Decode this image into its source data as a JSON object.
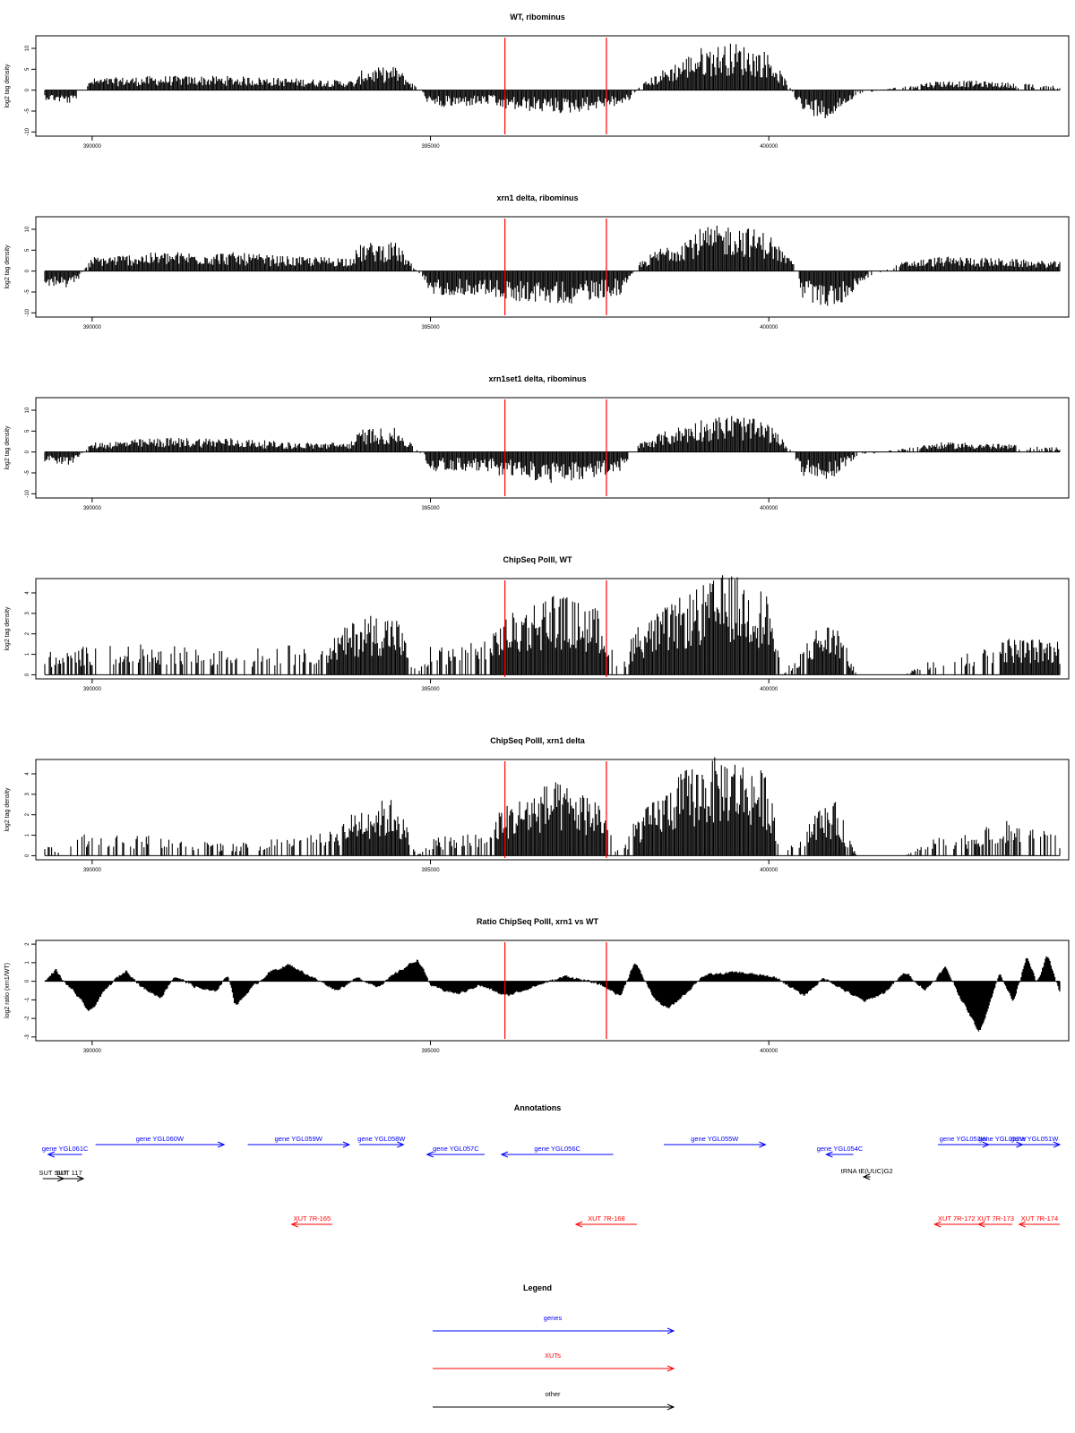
{
  "figure": {
    "colors": {
      "gene": "#0000ff",
      "xut": "#ff0000",
      "other": "#000000",
      "marker": "#ff0000",
      "data": "#000000"
    }
  },
  "chart_data": [
    {
      "type": "bar",
      "title": "WT, ribominus",
      "ylabel": "log2 tag density",
      "xlim": [
        389300,
        404300
      ],
      "ylim": [
        -11,
        13
      ],
      "yticks": [
        -10,
        -5,
        0,
        5,
        10
      ],
      "xticks": [
        "390000",
        "395000",
        "400000"
      ],
      "vlines": [
        396100,
        397600
      ],
      "grid": false,
      "profile": [
        [
          389300,
          -2
        ],
        [
          389700,
          -3
        ],
        [
          390000,
          2.5
        ],
        [
          391000,
          3
        ],
        [
          392000,
          3
        ],
        [
          393000,
          2.5
        ],
        [
          393900,
          2
        ],
        [
          394000,
          4.5
        ],
        [
          394500,
          5
        ],
        [
          394900,
          -1
        ],
        [
          395000,
          -4
        ],
        [
          395900,
          -3
        ],
        [
          396000,
          -4
        ],
        [
          397000,
          -5
        ],
        [
          397900,
          -3
        ],
        [
          398100,
          1
        ],
        [
          398400,
          4
        ],
        [
          399000,
          9
        ],
        [
          399500,
          10
        ],
        [
          400000,
          8
        ],
        [
          400300,
          1
        ],
        [
          400500,
          -5
        ],
        [
          400900,
          -6
        ],
        [
          401300,
          -1
        ],
        [
          402000,
          1
        ],
        [
          402500,
          2
        ],
        [
          403000,
          2
        ],
        [
          404300,
          1
        ]
      ]
    },
    {
      "type": "bar",
      "title": "xrn1 delta, ribominus",
      "ylabel": "log2 tag density",
      "xlim": [
        389300,
        404300
      ],
      "ylim": [
        -11,
        13
      ],
      "yticks": [
        -10,
        -5,
        0,
        5,
        10
      ],
      "xticks": [
        "390000",
        "395000",
        "400000"
      ],
      "vlines": [
        396100,
        397600
      ],
      "grid": false,
      "profile": [
        [
          389300,
          -3
        ],
        [
          389700,
          -4
        ],
        [
          390000,
          3
        ],
        [
          391000,
          4
        ],
        [
          392000,
          4
        ],
        [
          393000,
          3
        ],
        [
          393800,
          3
        ],
        [
          394000,
          6
        ],
        [
          394500,
          6
        ],
        [
          394900,
          -2
        ],
        [
          395000,
          -5
        ],
        [
          395900,
          -5
        ],
        [
          396000,
          -6
        ],
        [
          397000,
          -7
        ],
        [
          397800,
          -5
        ],
        [
          398100,
          2
        ],
        [
          398400,
          5
        ],
        [
          399000,
          9
        ],
        [
          399500,
          10
        ],
        [
          400000,
          8
        ],
        [
          400400,
          1
        ],
        [
          400500,
          -6
        ],
        [
          401000,
          -8
        ],
        [
          401400,
          -2
        ],
        [
          402000,
          2
        ],
        [
          402500,
          3
        ],
        [
          403000,
          3
        ],
        [
          404300,
          2
        ]
      ]
    },
    {
      "type": "bar",
      "title": "xrn1set1 delta, ribominus",
      "ylabel": "log2 tag density",
      "xlim": [
        389300,
        404300
      ],
      "ylim": [
        -11,
        13
      ],
      "yticks": [
        -10,
        -5,
        0,
        5,
        10
      ],
      "xticks": [
        "390000",
        "395000",
        "400000"
      ],
      "vlines": [
        396100,
        397600
      ],
      "grid": false,
      "profile": [
        [
          389300,
          -2
        ],
        [
          389700,
          -3
        ],
        [
          390000,
          2
        ],
        [
          391000,
          3
        ],
        [
          392000,
          3
        ],
        [
          393000,
          2
        ],
        [
          393800,
          2
        ],
        [
          394000,
          5
        ],
        [
          394500,
          5
        ],
        [
          394900,
          -1
        ],
        [
          395000,
          -4
        ],
        [
          395900,
          -4
        ],
        [
          396000,
          -5
        ],
        [
          397000,
          -7
        ],
        [
          397800,
          -4
        ],
        [
          398100,
          2
        ],
        [
          398400,
          4
        ],
        [
          399000,
          7
        ],
        [
          399500,
          8
        ],
        [
          400000,
          6
        ],
        [
          400300,
          1
        ],
        [
          400500,
          -5
        ],
        [
          400900,
          -6
        ],
        [
          401300,
          -1
        ],
        [
          402000,
          1
        ],
        [
          402500,
          2
        ],
        [
          403000,
          2
        ],
        [
          404300,
          1
        ]
      ]
    },
    {
      "type": "bar",
      "title": "ChipSeq PolII, WT",
      "ylabel": "log2 tag density",
      "xlim": [
        389300,
        404300
      ],
      "ylim": [
        -0.2,
        4.7
      ],
      "yticks": [
        0,
        1,
        2,
        3,
        4
      ],
      "xticks": [
        "390000",
        "395000",
        "400000"
      ],
      "vlines": [
        396100,
        397600
      ],
      "grid": false,
      "profile": [
        [
          389300,
          1
        ],
        [
          389600,
          1
        ],
        [
          390000,
          1.3
        ],
        [
          391000,
          1.3
        ],
        [
          392000,
          1
        ],
        [
          393000,
          1.3
        ],
        [
          393500,
          1.5
        ],
        [
          394000,
          2.6
        ],
        [
          394500,
          2.6
        ],
        [
          394800,
          0
        ],
        [
          395000,
          1.2
        ],
        [
          395900,
          1.5
        ],
        [
          396000,
          2.3
        ],
        [
          396800,
          3.6
        ],
        [
          397500,
          2.8
        ],
        [
          397800,
          0
        ],
        [
          398000,
          2
        ],
        [
          398800,
          3.5
        ],
        [
          399400,
          4.4
        ],
        [
          400000,
          3.5
        ],
        [
          400200,
          0
        ],
        [
          400700,
          2
        ],
        [
          401000,
          2.3
        ],
        [
          401300,
          0
        ],
        [
          402000,
          0
        ],
        [
          402500,
          1
        ],
        [
          403000,
          1
        ],
        [
          403500,
          1.6
        ],
        [
          404300,
          1.5
        ]
      ]
    },
    {
      "type": "bar",
      "title": "ChipSeq PolII, xrn1 delta",
      "ylabel": "log2 tag density",
      "xlim": [
        389300,
        404300
      ],
      "ylim": [
        -0.2,
        4.7
      ],
      "yticks": [
        0,
        1,
        2,
        3,
        4
      ],
      "xticks": [
        "390000",
        "395000",
        "400000"
      ],
      "vlines": [
        396100,
        397600
      ],
      "grid": false,
      "profile": [
        [
          389300,
          0.5
        ],
        [
          389600,
          0.3
        ],
        [
          390000,
          1.2
        ],
        [
          391000,
          0.8
        ],
        [
          392000,
          0.5
        ],
        [
          393000,
          0.8
        ],
        [
          393500,
          1
        ],
        [
          394000,
          2.2
        ],
        [
          394500,
          2.5
        ],
        [
          394800,
          0
        ],
        [
          395000,
          0.8
        ],
        [
          395900,
          1
        ],
        [
          396000,
          2
        ],
        [
          396800,
          3.2
        ],
        [
          397500,
          2.5
        ],
        [
          397800,
          0
        ],
        [
          398000,
          1.5
        ],
        [
          398800,
          3.8
        ],
        [
          399400,
          4.4
        ],
        [
          400000,
          3.5
        ],
        [
          400200,
          0
        ],
        [
          400700,
          2
        ],
        [
          401000,
          2.3
        ],
        [
          401300,
          0
        ],
        [
          402000,
          0
        ],
        [
          402500,
          0.8
        ],
        [
          403000,
          1
        ],
        [
          403500,
          1.5
        ],
        [
          404300,
          1
        ]
      ]
    },
    {
      "type": "area",
      "title": "Ratio ChipSeq PolII, xrn1 vs WT",
      "ylabel": "log2 ratio (xrn1/WT)",
      "xlim": [
        389300,
        404300
      ],
      "ylim": [
        -3.2,
        2.2
      ],
      "yticks": [
        -3,
        -2,
        -1,
        0,
        1,
        2
      ],
      "xticks": [
        "390000",
        "395000",
        "400000"
      ],
      "vlines": [
        396100,
        397600
      ],
      "grid": false,
      "profile": [
        [
          389300,
          0
        ],
        [
          389450,
          0.7
        ],
        [
          389550,
          0
        ],
        [
          389700,
          -0.5
        ],
        [
          389950,
          -1.7
        ],
        [
          390150,
          -0.6
        ],
        [
          390350,
          0.2
        ],
        [
          390500,
          0.6
        ],
        [
          390700,
          -0.3
        ],
        [
          391000,
          -0.9
        ],
        [
          391200,
          0.3
        ],
        [
          391500,
          -0.3
        ],
        [
          391800,
          -0.6
        ],
        [
          392000,
          0.4
        ],
        [
          392100,
          -1.4
        ],
        [
          392300,
          -0.5
        ],
        [
          392600,
          0.5
        ],
        [
          392900,
          0.9
        ],
        [
          393200,
          0.3
        ],
        [
          393600,
          -0.5
        ],
        [
          393900,
          0.2
        ],
        [
          394200,
          -0.3
        ],
        [
          394500,
          0.5
        ],
        [
          394800,
          1.2
        ],
        [
          395000,
          -0.3
        ],
        [
          395400,
          -0.7
        ],
        [
          395700,
          -0.2
        ],
        [
          396100,
          -0.8
        ],
        [
          396500,
          -0.3
        ],
        [
          397000,
          0.3
        ],
        [
          397500,
          -0.2
        ],
        [
          397800,
          -0.8
        ],
        [
          398000,
          1.1
        ],
        [
          398300,
          -1
        ],
        [
          398500,
          -1.5
        ],
        [
          398800,
          -0.5
        ],
        [
          399000,
          0.3
        ],
        [
          399500,
          0.5
        ],
        [
          400100,
          0.2
        ],
        [
          400300,
          -0.3
        ],
        [
          400500,
          -0.8
        ],
        [
          400800,
          0.2
        ],
        [
          401100,
          -0.5
        ],
        [
          401400,
          -1.1
        ],
        [
          401700,
          -0.6
        ],
        [
          402000,
          0.5
        ],
        [
          402300,
          -0.5
        ],
        [
          402600,
          0.8
        ],
        [
          402800,
          -0.8
        ],
        [
          403100,
          -2.8
        ],
        [
          403400,
          0.5
        ],
        [
          403600,
          -1.2
        ],
        [
          403800,
          1.5
        ],
        [
          403950,
          -0.2
        ],
        [
          404100,
          1.5
        ],
        [
          404300,
          -0.8
        ]
      ]
    }
  ],
  "annotations": {
    "title": "Annotations",
    "features": [
      {
        "label": "gene YGL061C",
        "kind": "gene",
        "start": 389350,
        "end": 389850,
        "dir": "left",
        "row": 1
      },
      {
        "label": "gene YGL060W",
        "kind": "gene",
        "start": 390050,
        "end": 391950,
        "dir": "right",
        "row": 0
      },
      {
        "label": "gene YGL059W",
        "kind": "gene",
        "start": 392300,
        "end": 393800,
        "dir": "right",
        "row": 0
      },
      {
        "label": "gene YGL058W",
        "kind": "gene",
        "start": 393950,
        "end": 394600,
        "dir": "right",
        "row": 0
      },
      {
        "label": "gene YGL057C",
        "kind": "gene",
        "start": 394950,
        "end": 395800,
        "dir": "left",
        "row": 1
      },
      {
        "label": "gene YGL056C",
        "kind": "gene",
        "start": 396050,
        "end": 397700,
        "dir": "left",
        "row": 1
      },
      {
        "label": "gene YGL055W",
        "kind": "gene",
        "start": 398450,
        "end": 399950,
        "dir": "right",
        "row": 0
      },
      {
        "label": "gene YGL054C",
        "kind": "gene",
        "start": 400850,
        "end": 401250,
        "dir": "left",
        "row": 1
      },
      {
        "label": "gene YGL053W",
        "kind": "gene",
        "start": 402500,
        "end": 403250,
        "dir": "right",
        "row": 0
      },
      {
        "label": "gene YGL052W",
        "kind": "gene",
        "start": 403150,
        "end": 403750,
        "dir": "right",
        "row": 0
      },
      {
        "label": "gene YGL051W",
        "kind": "gene",
        "start": 403550,
        "end": 404300,
        "dir": "right",
        "row": 0
      },
      {
        "label": "tRNA tE(UUC)G2",
        "kind": "other",
        "start": 401400,
        "end": 401500,
        "dir": "left",
        "row": 2
      },
      {
        "label": "SUT SUT",
        "kind": "other",
        "start": 389270,
        "end": 389580,
        "dir": "right",
        "row": 3
      },
      {
        "label": "SUT 117",
        "kind": "other",
        "start": 389450,
        "end": 389870,
        "dir": "right",
        "row": 3
      },
      {
        "label": "XUT 7R-165",
        "kind": "xut",
        "start": 392950,
        "end": 393550,
        "dir": "left",
        "row": 4
      },
      {
        "label": "XUT 7R-168",
        "kind": "xut",
        "start": 397150,
        "end": 398050,
        "dir": "left",
        "row": 4
      },
      {
        "label": "XUT 7R-172",
        "kind": "xut",
        "start": 402450,
        "end": 403100,
        "dir": "left",
        "row": 4
      },
      {
        "label": "XUT 7R-173",
        "kind": "xut",
        "start": 403100,
        "end": 403600,
        "dir": "left",
        "row": 4
      },
      {
        "label": "XUT 7R-174",
        "kind": "xut",
        "start": 403700,
        "end": 404300,
        "dir": "left",
        "row": 4
      }
    ]
  },
  "legend": {
    "title": "Legend",
    "items": [
      {
        "label": "genes",
        "kind": "gene"
      },
      {
        "label": "XUTs",
        "kind": "xut"
      },
      {
        "label": "other",
        "kind": "other"
      }
    ]
  }
}
